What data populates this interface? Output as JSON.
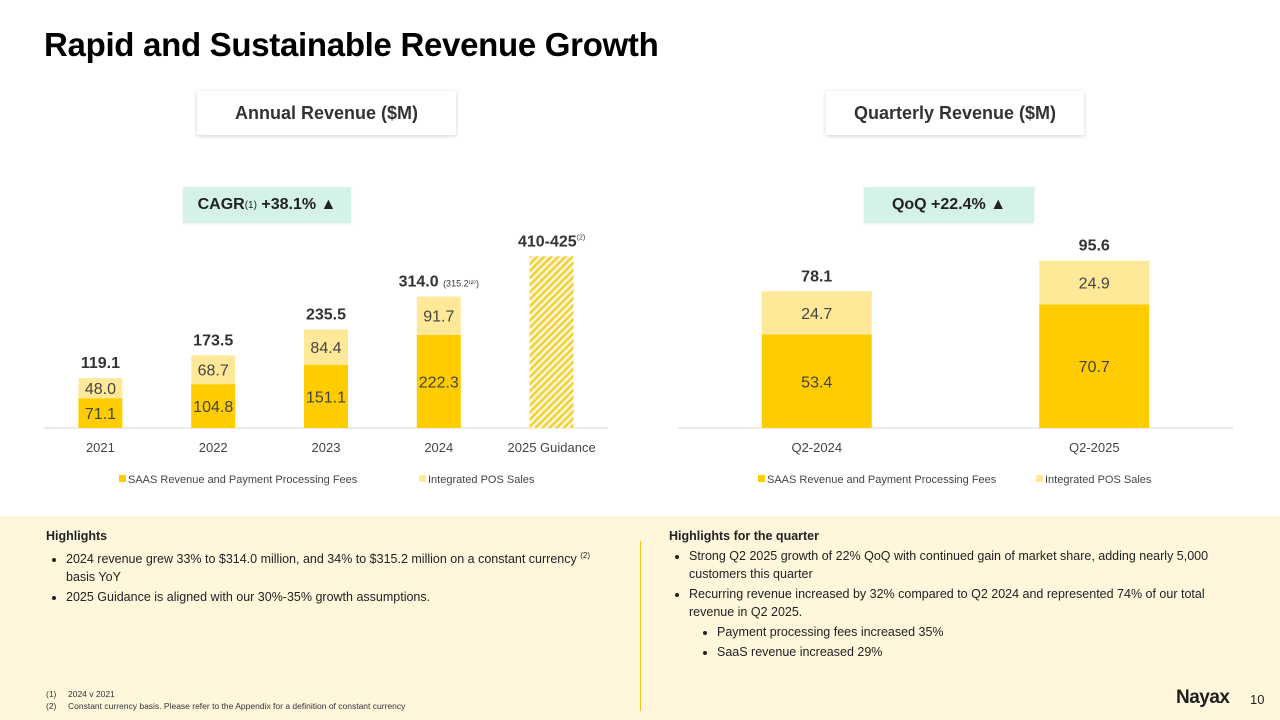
{
  "page": {
    "title": "Rapid and Sustainable Revenue Growth",
    "page_number": "10",
    "logo_text": "Nayax"
  },
  "colors": {
    "saas": "#ffcc00",
    "pos": "#ffe999",
    "pill_bg": "#d4f1ea",
    "panel_bg": "#fff6dc",
    "divider": "#f0c419"
  },
  "annual": {
    "panel_title": "Annual Revenue ($M)",
    "pill_label": "CAGR",
    "pill_sup": "(1)",
    "pill_value": "+38.1% ▲"
  },
  "quarterly": {
    "panel_title": "Quarterly Revenue ($M)",
    "pill_label": "QoQ +22.4% ▲"
  },
  "chart_data": [
    {
      "type": "bar",
      "stacked": true,
      "title": "Annual Revenue ($M)",
      "categories": [
        "2021",
        "2022",
        "2023",
        "2024",
        "2025 Guidance"
      ],
      "series": [
        {
          "name": "SAAS Revenue and Payment Processing Fees",
          "values": [
            71.1,
            104.8,
            151.1,
            222.3,
            null
          ]
        },
        {
          "name": "Integrated POS Sales",
          "values": [
            48.0,
            68.7,
            84.4,
            91.7,
            null
          ]
        }
      ],
      "totals": [
        "119.1",
        "173.5",
        "235.5",
        "314.0",
        "410-425"
      ],
      "total_notes": [
        "",
        "",
        "",
        "(315.2⁽²⁾)",
        "(2)"
      ],
      "guidance_range": [
        410,
        425
      ],
      "ylim": [
        0,
        425
      ],
      "legend_position": "bottom",
      "grid": false
    },
    {
      "type": "bar",
      "stacked": true,
      "title": "Quarterly Revenue ($M)",
      "categories": [
        "Q2-2024",
        "Q2-2025"
      ],
      "series": [
        {
          "name": "SAAS Revenue and Payment Processing Fees",
          "values": [
            53.4,
            70.7
          ]
        },
        {
          "name": "Integrated POS Sales",
          "values": [
            24.7,
            24.9
          ]
        }
      ],
      "totals": [
        "78.1",
        "95.6"
      ],
      "ylim": [
        0,
        95.6
      ],
      "legend_position": "bottom",
      "grid": false
    }
  ],
  "highlights": {
    "heading": "Highlights",
    "items": [
      {
        "text_before": "2024 revenue grew 33% to $314.0 million, and 34% to $315.2 million on a constant currency ",
        "sup": "(2)",
        "text_after": " basis YoY"
      },
      {
        "text_before": "2025 Guidance is aligned with our 30%-35% growth assumptions.",
        "sup": "",
        "text_after": ""
      }
    ]
  },
  "quarter_highlights": {
    "heading": "Highlights for the quarter",
    "items": [
      "Strong Q2 2025 growth of 22% QoQ with continued gain of market share, adding nearly 5,000 customers this quarter",
      "Recurring revenue increased by 32% compared to Q2 2024 and represented 74% of our total revenue in Q2 2025."
    ],
    "sub_items": [
      "Payment processing fees increased 35%",
      "SaaS revenue increased 29%"
    ]
  },
  "footnotes": [
    {
      "num": "(1)",
      "text": "2024 v 2021"
    },
    {
      "num": "(2)",
      "text": "Constant currency basis. Please refer to the Appendix for a definition of constant currency"
    }
  ]
}
